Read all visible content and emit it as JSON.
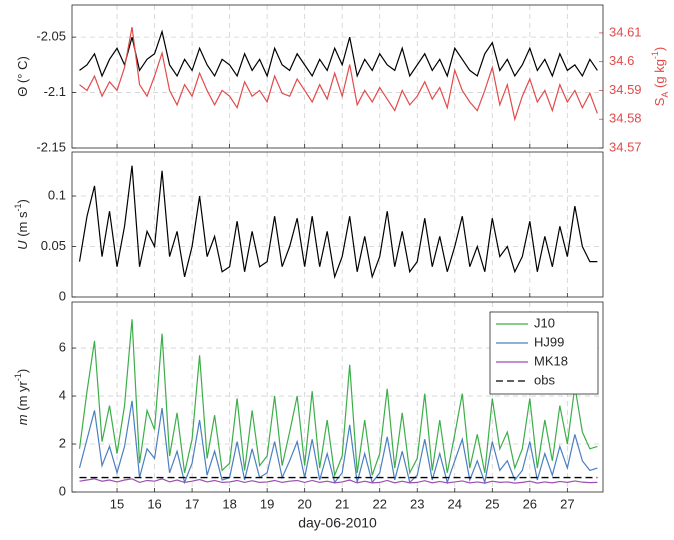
{
  "chart_data": [
    {
      "type": "line",
      "ylabel": [
        {
          "text": "Θ (° C)"
        }
      ],
      "y2label": [
        {
          "text": "S"
        },
        {
          "text": "A",
          "script": "sub"
        },
        {
          "text": " (g kg"
        },
        {
          "text": "-1",
          "script": "super"
        },
        {
          "text": ")"
        }
      ],
      "x": [
        14,
        14.2,
        14.4,
        14.6,
        14.8,
        15,
        15.2,
        15.4,
        15.6,
        15.8,
        16,
        16.2,
        16.4,
        16.6,
        16.8,
        17,
        17.2,
        17.4,
        17.6,
        17.8,
        18,
        18.2,
        18.4,
        18.6,
        18.8,
        19,
        19.2,
        19.4,
        19.6,
        19.8,
        20,
        20.2,
        20.4,
        20.6,
        20.8,
        21,
        21.2,
        21.4,
        21.6,
        21.8,
        22,
        22.2,
        22.4,
        22.6,
        22.8,
        23,
        23.2,
        23.4,
        23.6,
        23.8,
        24,
        24.2,
        24.4,
        24.6,
        24.8,
        25,
        25.2,
        25.4,
        25.6,
        25.8,
        26,
        26.2,
        26.4,
        26.6,
        26.8,
        27,
        27.2,
        27.4,
        27.6,
        27.8
      ],
      "xlim": [
        13.8,
        27.95
      ],
      "xticks": [
        15,
        16,
        17,
        18,
        19,
        20,
        21,
        22,
        23,
        24,
        25,
        26,
        27
      ],
      "ylim": [
        -2.15,
        -2.021
      ],
      "yticks": [
        -2.15,
        -2.1,
        -2.05
      ],
      "y2lim": [
        34.57,
        34.6197
      ],
      "y2ticks": [
        34.57,
        34.58,
        34.59,
        34.6,
        34.61
      ],
      "y2color": "#e34a4a",
      "grid": true,
      "series": [
        {
          "color": "#000000",
          "values": [
            -2.08,
            -2.075,
            -2.065,
            -2.085,
            -2.07,
            -2.06,
            -2.075,
            -2.05,
            -2.08,
            -2.07,
            -2.065,
            -2.045,
            -2.075,
            -2.085,
            -2.07,
            -2.08,
            -2.06,
            -2.075,
            -2.085,
            -2.07,
            -2.075,
            -2.085,
            -2.065,
            -2.08,
            -2.07,
            -2.085,
            -2.06,
            -2.075,
            -2.08,
            -2.065,
            -2.075,
            -2.085,
            -2.07,
            -2.08,
            -2.06,
            -2.075,
            -2.05,
            -2.085,
            -2.07,
            -2.08,
            -2.065,
            -2.075,
            -2.08,
            -2.06,
            -2.085,
            -2.075,
            -2.065,
            -2.08,
            -2.07,
            -2.085,
            -2.06,
            -2.07,
            -2.08,
            -2.085,
            -2.065,
            -2.055,
            -2.08,
            -2.07,
            -2.085,
            -2.075,
            -2.06,
            -2.08,
            -2.07,
            -2.085,
            -2.065,
            -2.08,
            -2.075,
            -2.085,
            -2.07,
            -2.08
          ]
        },
        {
          "color": "#e34a4a",
          "axis": "y2",
          "values": [
            34.592,
            34.59,
            34.595,
            34.588,
            34.593,
            34.59,
            34.598,
            34.612,
            34.592,
            34.588,
            34.595,
            34.603,
            34.59,
            34.585,
            34.592,
            34.588,
            34.596,
            34.59,
            34.585,
            34.59,
            34.588,
            34.584,
            34.593,
            34.588,
            34.59,
            34.586,
            34.595,
            34.589,
            34.588,
            34.594,
            34.59,
            34.586,
            34.592,
            34.587,
            34.596,
            34.588,
            34.599,
            34.585,
            34.59,
            34.586,
            34.591,
            34.587,
            34.583,
            34.59,
            34.585,
            34.588,
            34.593,
            34.587,
            34.591,
            34.584,
            34.597,
            34.59,
            34.586,
            34.583,
            34.59,
            34.598,
            34.585,
            34.592,
            34.58,
            34.588,
            34.594,
            34.586,
            34.59,
            34.583,
            34.592,
            34.586,
            34.59,
            34.584,
            34.589,
            34.582
          ]
        }
      ]
    },
    {
      "type": "line",
      "ylabel": [
        {
          "text": "U",
          "style": "italic"
        },
        {
          "text": " (m s"
        },
        {
          "text": "-1",
          "script": "super"
        },
        {
          "text": ")"
        }
      ],
      "x": [
        14,
        14.2,
        14.4,
        14.6,
        14.8,
        15,
        15.2,
        15.4,
        15.6,
        15.8,
        16,
        16.2,
        16.4,
        16.6,
        16.8,
        17,
        17.2,
        17.4,
        17.6,
        17.8,
        18,
        18.2,
        18.4,
        18.6,
        18.8,
        19,
        19.2,
        19.4,
        19.6,
        19.8,
        20,
        20.2,
        20.4,
        20.6,
        20.8,
        21,
        21.2,
        21.4,
        21.6,
        21.8,
        22,
        22.2,
        22.4,
        22.6,
        22.8,
        23,
        23.2,
        23.4,
        23.6,
        23.8,
        24,
        24.2,
        24.4,
        24.6,
        24.8,
        25,
        25.2,
        25.4,
        25.6,
        25.8,
        26,
        26.2,
        26.4,
        26.6,
        26.8,
        27,
        27.2,
        27.4,
        27.6,
        27.8
      ],
      "xlim": [
        13.8,
        27.95
      ],
      "xticks": [
        15,
        16,
        17,
        18,
        19,
        20,
        21,
        22,
        23,
        24,
        25,
        26,
        27
      ],
      "ylim": [
        0,
        0.1436
      ],
      "yticks": [
        0,
        0.05,
        0.1
      ],
      "grid": true,
      "series": [
        {
          "color": "#000000",
          "values": [
            0.035,
            0.08,
            0.11,
            0.04,
            0.085,
            0.03,
            0.07,
            0.13,
            0.03,
            0.065,
            0.05,
            0.125,
            0.04,
            0.065,
            0.02,
            0.05,
            0.1,
            0.04,
            0.06,
            0.025,
            0.03,
            0.075,
            0.025,
            0.065,
            0.03,
            0.035,
            0.08,
            0.03,
            0.05,
            0.078,
            0.03,
            0.08,
            0.03,
            0.065,
            0.02,
            0.04,
            0.08,
            0.025,
            0.06,
            0.02,
            0.04,
            0.085,
            0.03,
            0.065,
            0.025,
            0.035,
            0.078,
            0.03,
            0.06,
            0.025,
            0.05,
            0.08,
            0.03,
            0.05,
            0.025,
            0.078,
            0.04,
            0.05,
            0.025,
            0.04,
            0.075,
            0.025,
            0.06,
            0.03,
            0.07,
            0.04,
            0.09,
            0.05,
            0.035,
            0.035
          ]
        }
      ]
    },
    {
      "type": "line",
      "ylabel": [
        {
          "text": "m",
          "style": "italic"
        },
        {
          "text": " (m yr"
        },
        {
          "text": "-1",
          "script": "super"
        },
        {
          "text": ")"
        }
      ],
      "xlabel": "day-06-2010",
      "x": [
        14,
        14.2,
        14.4,
        14.6,
        14.8,
        15,
        15.2,
        15.4,
        15.6,
        15.8,
        16,
        16.2,
        16.4,
        16.6,
        16.8,
        17,
        17.2,
        17.4,
        17.6,
        17.8,
        18,
        18.2,
        18.4,
        18.6,
        18.8,
        19,
        19.2,
        19.4,
        19.6,
        19.8,
        20,
        20.2,
        20.4,
        20.6,
        20.8,
        21,
        21.2,
        21.4,
        21.6,
        21.8,
        22,
        22.2,
        22.4,
        22.6,
        22.8,
        23,
        23.2,
        23.4,
        23.6,
        23.8,
        24,
        24.2,
        24.4,
        24.6,
        24.8,
        25,
        25.2,
        25.4,
        25.6,
        25.8,
        26,
        26.2,
        26.4,
        26.6,
        26.8,
        27,
        27.2,
        27.4,
        27.6,
        27.8
      ],
      "xlim": [
        13.8,
        27.95
      ],
      "xticks": [
        15,
        16,
        17,
        18,
        19,
        20,
        21,
        22,
        23,
        24,
        25,
        26,
        27
      ],
      "ylim": [
        0,
        7.92
      ],
      "yticks": [
        0,
        2,
        4,
        6
      ],
      "grid": true,
      "legend": "upper right",
      "series": [
        {
          "name": "J10",
          "color": "#3cae49",
          "values": [
            1.8,
            4.2,
            6.3,
            2.1,
            3.6,
            1.6,
            3.6,
            7.2,
            1.2,
            3.4,
            2.6,
            6.6,
            1.5,
            3.3,
            0.8,
            2.2,
            5.7,
            1.4,
            3.2,
            0.9,
            1.2,
            3.9,
            0.9,
            3.4,
            1.1,
            1.5,
            4.0,
            1.1,
            2.5,
            4.0,
            1.1,
            4.2,
            1.0,
            3.0,
            0.7,
            1.5,
            5.3,
            0.8,
            3.0,
            0.7,
            1.6,
            4.3,
            1.0,
            3.3,
            0.8,
            1.4,
            4.1,
            0.9,
            3.0,
            0.8,
            2.4,
            4.1,
            1.0,
            2.4,
            0.8,
            3.9,
            1.8,
            2.5,
            1.0,
            1.8,
            3.9,
            1.0,
            3.0,
            1.3,
            3.6,
            2.0,
            4.4,
            2.5,
            1.8,
            1.9
          ]
        },
        {
          "name": "HJ99",
          "color": "#4a7fc1",
          "values": [
            1.0,
            2.2,
            3.4,
            1.1,
            1.9,
            0.8,
            1.9,
            3.8,
            0.6,
            1.8,
            1.4,
            3.5,
            0.8,
            1.7,
            0.4,
            1.2,
            3.0,
            0.7,
            1.7,
            0.5,
            0.6,
            2.1,
            0.5,
            1.8,
            0.6,
            0.8,
            2.1,
            0.6,
            1.3,
            2.1,
            0.6,
            2.2,
            0.5,
            1.6,
            0.4,
            0.8,
            2.8,
            0.4,
            1.6,
            0.4,
            0.8,
            2.3,
            0.5,
            1.7,
            0.4,
            0.7,
            2.2,
            0.5,
            1.6,
            0.4,
            1.3,
            2.2,
            0.5,
            1.3,
            0.4,
            2.1,
            0.9,
            1.3,
            0.5,
            0.9,
            2.1,
            0.5,
            1.6,
            0.7,
            1.9,
            1.0,
            2.4,
            1.3,
            0.9,
            1.0
          ]
        },
        {
          "name": "MK18",
          "color": "#9b4fb0",
          "values": [
            0.45,
            0.5,
            0.55,
            0.45,
            0.5,
            0.42,
            0.5,
            0.55,
            0.4,
            0.48,
            0.45,
            0.55,
            0.42,
            0.5,
            0.4,
            0.45,
            0.52,
            0.42,
            0.48,
            0.4,
            0.42,
            0.48,
            0.4,
            0.47,
            0.4,
            0.42,
            0.48,
            0.4,
            0.45,
            0.48,
            0.4,
            0.48,
            0.4,
            0.45,
            0.38,
            0.42,
            0.5,
            0.38,
            0.45,
            0.38,
            0.4,
            0.48,
            0.38,
            0.45,
            0.38,
            0.4,
            0.47,
            0.38,
            0.44,
            0.38,
            0.42,
            0.46,
            0.38,
            0.42,
            0.37,
            0.45,
            0.4,
            0.42,
            0.37,
            0.4,
            0.45,
            0.37,
            0.42,
            0.38,
            0.44,
            0.4,
            0.46,
            0.41,
            0.39,
            0.4
          ]
        },
        {
          "name": "obs",
          "color": "#000000",
          "linestyle": "dashed",
          "values": [
            0.6,
            0.6,
            0.6,
            0.6,
            0.6,
            0.6,
            0.6,
            0.6,
            0.6,
            0.6,
            0.6,
            0.6,
            0.6,
            0.6,
            0.6,
            0.6,
            0.6,
            0.6,
            0.6,
            0.6,
            0.6,
            0.6,
            0.6,
            0.6,
            0.6,
            0.6,
            0.6,
            0.6,
            0.6,
            0.6,
            0.6,
            0.6,
            0.6,
            0.6,
            0.6,
            0.6,
            0.6,
            0.6,
            0.6,
            0.6,
            0.6,
            0.6,
            0.6,
            0.6,
            0.6,
            0.6,
            0.6,
            0.6,
            0.6,
            0.6,
            0.6,
            0.6,
            0.6,
            0.6,
            0.6,
            0.6,
            0.6,
            0.6,
            0.6,
            0.6,
            0.6,
            0.6,
            0.6,
            0.6,
            0.6,
            0.6,
            0.6,
            0.6,
            0.6,
            0.6
          ]
        }
      ]
    }
  ]
}
